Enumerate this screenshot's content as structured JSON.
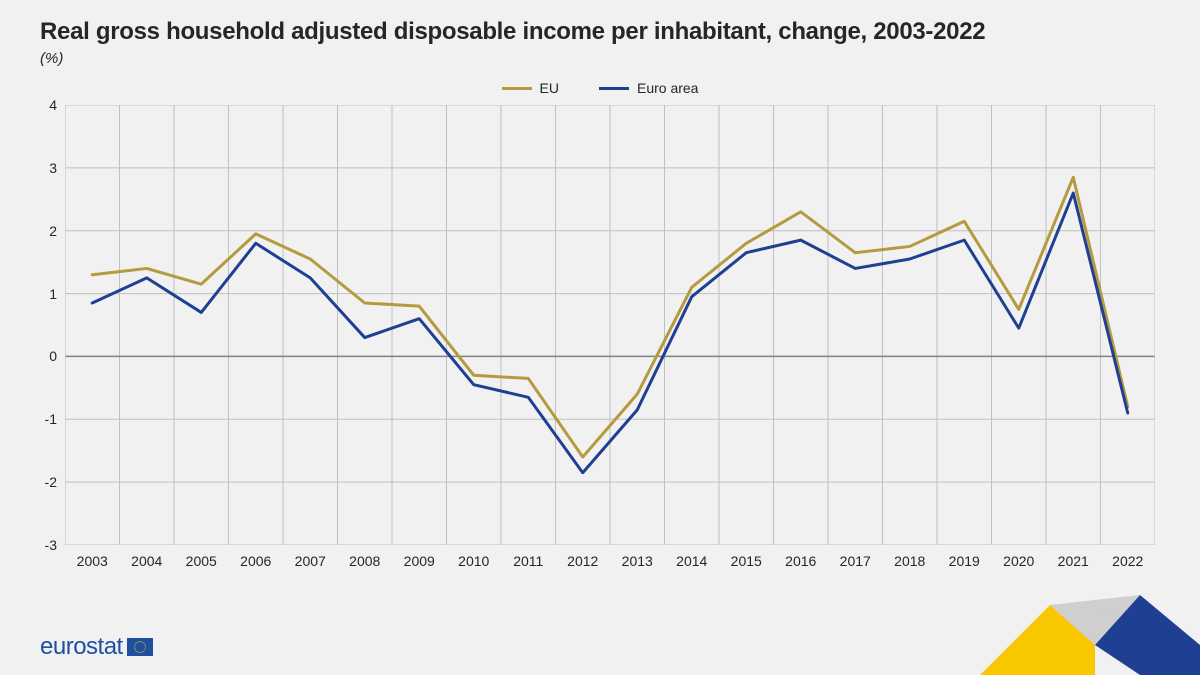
{
  "title": "Real gross household adjusted disposable income per inhabitant, change, 2003-2022",
  "subtitle": "(%)",
  "chart": {
    "type": "line",
    "background_color": "#f1f1f1",
    "grid_color": "#c0c0c0",
    "zero_line_color": "#808080",
    "ylim": [
      -3,
      4
    ],
    "ytick_step": 1,
    "x_categories": [
      "2003",
      "2004",
      "2005",
      "2006",
      "2007",
      "2008",
      "2009",
      "2010",
      "2011",
      "2012",
      "2013",
      "2014",
      "2015",
      "2016",
      "2017",
      "2018",
      "2019",
      "2020",
      "2021",
      "2022"
    ],
    "line_width": 3,
    "label_fontsize": 14,
    "title_fontsize": 24,
    "series": [
      {
        "name": "EU",
        "color": "#b59a3f",
        "values": [
          1.3,
          1.4,
          1.15,
          1.95,
          1.55,
          0.85,
          0.8,
          -0.3,
          -0.35,
          -1.6,
          -0.6,
          1.1,
          1.8,
          2.3,
          1.65,
          1.75,
          2.15,
          0.75,
          2.85,
          -0.8
        ]
      },
      {
        "name": "Euro area",
        "color": "#1f3f93",
        "values": [
          0.85,
          1.25,
          0.7,
          1.8,
          1.25,
          0.3,
          0.6,
          -0.45,
          -0.65,
          -1.85,
          -0.85,
          0.95,
          1.65,
          1.85,
          1.4,
          1.55,
          1.85,
          0.45,
          2.6,
          -0.9
        ]
      }
    ]
  },
  "legend": {
    "items": [
      {
        "label": "EU",
        "color": "#b59a3f"
      },
      {
        "label": "Euro area",
        "color": "#1f3f93"
      }
    ]
  },
  "footer": {
    "logo_text": "eurostat",
    "logo_color": "#1f4fa0",
    "corner_colors": {
      "yellow": "#f9c800",
      "gray": "#cfcfcf",
      "blue": "#1f3f93"
    }
  }
}
